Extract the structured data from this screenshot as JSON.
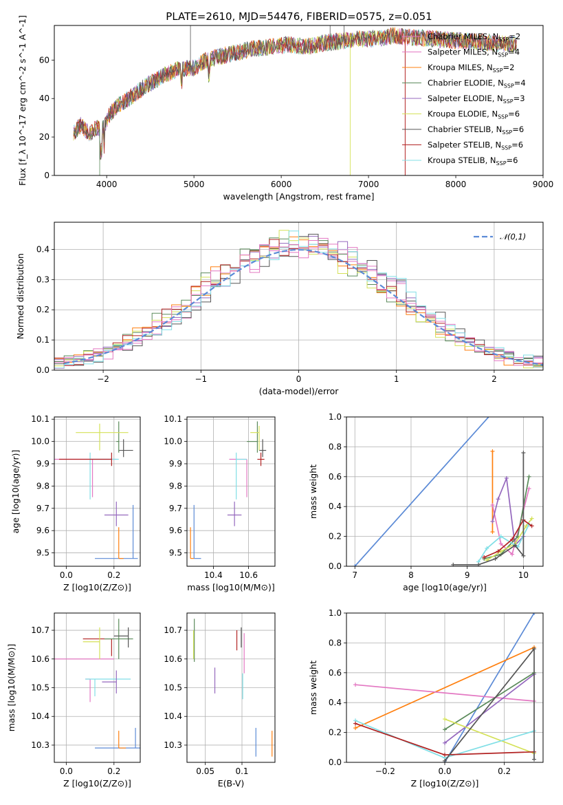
{
  "title": "PLATE=2610, MJD=54476, FIBERID=0575, z=0.051",
  "colors": [
    "#1f77b4",
    "#e377c2",
    "#ff7f0e",
    "#5a8a5a",
    "#9467bd",
    "#d4e157",
    "#555555",
    "#b22222",
    "#80dfe6"
  ],
  "legend_labels": [
    "Chabrier MILES, N_SSP=2",
    "Salpeter MILES, N_SSP=4",
    "Kroupa MILES, N_SSP=2",
    "Chabrier ELODIE, N_SSP=4",
    "Salpeter ELODIE, N_SSP=3",
    "Kroupa ELODIE, N_SSP=6",
    "Chabrier STELIB, N_SSP=6",
    "Salpeter STELIB, N_SSP=6",
    "Kroupa STELIB, N_SSP=6"
  ],
  "chart_data": [
    {
      "type": "line",
      "name": "spectrum",
      "title": "PLATE=2610, MJD=54476, FIBERID=0575, z=0.051",
      "xlabel": "wavelength [Angstrom, rest frame]",
      "ylabel": "Flux [f_λ 10^-17 erg cm^-2 s^-1 A^-1]",
      "xlim": [
        3400,
        9000
      ],
      "ylim": [
        0,
        78
      ],
      "xticks": [
        4000,
        5000,
        6000,
        7000,
        8000,
        9000
      ],
      "yticks": [
        0,
        20,
        40,
        60
      ],
      "x": [
        3620,
        3700,
        3800,
        3900,
        3950,
        4050,
        4150,
        4250,
        4400,
        4500,
        4650,
        4800,
        5000,
        5150,
        5300,
        5500,
        5700,
        5900,
        6100,
        6300,
        6500,
        6700,
        6900,
        7100,
        7300,
        7420
      ],
      "y": [
        22,
        26,
        22,
        25,
        24,
        33,
        37,
        40,
        45,
        48,
        52,
        55,
        56,
        60,
        62,
        64,
        66,
        67,
        68,
        67,
        69,
        70,
        71,
        71,
        73,
        72
      ],
      "grid": false,
      "legend": "right"
    },
    {
      "type": "bar",
      "name": "residual_hist",
      "xlabel": "(data-model)/error",
      "ylabel": "Normed distribution",
      "xlim": [
        -2.5,
        2.5
      ],
      "ylim": [
        0,
        0.49
      ],
      "xticks": [
        -2,
        -1,
        0,
        1,
        2
      ],
      "yticks": [
        0.0,
        0.1,
        0.2,
        0.3,
        0.4
      ],
      "bin_width": 0.1,
      "reference_curve": "𝒩(0,1)",
      "reference_color": "#5b8ad6",
      "grid": true,
      "legend": "top-right"
    },
    {
      "type": "scatter",
      "name": "age_vs_Z",
      "xlabel": "Z [log10(Z/Z⊙)]",
      "ylabel": "age [log10(age/yr)]",
      "xlim": [
        -0.05,
        0.31
      ],
      "ylim": [
        9.44,
        10.11
      ],
      "xticks": [
        0.0,
        0.2
      ],
      "yticks": [
        9.5,
        9.6,
        9.7,
        9.8,
        9.9,
        10.0,
        10.1
      ],
      "grid": true
    },
    {
      "type": "scatter",
      "name": "age_vs_mass",
      "xlabel": "mass [log10(M/M⊙)]",
      "ylabel": "",
      "xlim": [
        10.25,
        10.75
      ],
      "ylim": [
        9.44,
        10.11
      ],
      "xticks": [
        10.4,
        10.6
      ],
      "yticks": [
        9.5,
        9.6,
        9.7,
        9.8,
        9.9,
        10.0,
        10.1
      ],
      "grid": true
    },
    {
      "type": "line",
      "name": "weight_vs_age",
      "xlabel": "age [log10(age/yr)]",
      "ylabel": "mass weight",
      "xlim": [
        6.85,
        10.35
      ],
      "ylim": [
        0,
        1
      ],
      "xticks": [
        7,
        8,
        9,
        10
      ],
      "yticks": [
        0.0,
        0.2,
        0.4,
        0.6,
        0.8,
        1.0
      ],
      "grid": true
    },
    {
      "type": "scatter",
      "name": "mass_vs_Z",
      "xlabel": "Z [log10(Z/Z⊙)]",
      "ylabel": "mass [log10(M/M⊙)]",
      "xlim": [
        -0.05,
        0.31
      ],
      "ylim": [
        10.24,
        10.76
      ],
      "xticks": [
        0.0,
        0.2
      ],
      "yticks": [
        10.3,
        10.4,
        10.5,
        10.6,
        10.7
      ],
      "grid": true
    },
    {
      "type": "scatter",
      "name": "mass_vs_ebv",
      "xlabel": "E(B-V)",
      "ylabel": "",
      "xlim": [
        0.025,
        0.145
      ],
      "ylim": [
        10.24,
        10.76
      ],
      "xticks": [
        0.05,
        0.1
      ],
      "yticks": [
        10.3,
        10.4,
        10.5,
        10.6,
        10.7
      ],
      "grid": true
    },
    {
      "type": "line",
      "name": "weight_vs_Z",
      "xlabel": "Z [log10(Z/Z⊙)]",
      "ylabel": "mass weight",
      "xlim": [
        -0.33,
        0.33
      ],
      "ylim": [
        0,
        1
      ],
      "xticks": [
        -0.2,
        0.0,
        0.2
      ],
      "yticks": [
        0.0,
        0.2,
        0.4,
        0.6,
        0.8,
        1.0
      ],
      "grid": true
    }
  ]
}
